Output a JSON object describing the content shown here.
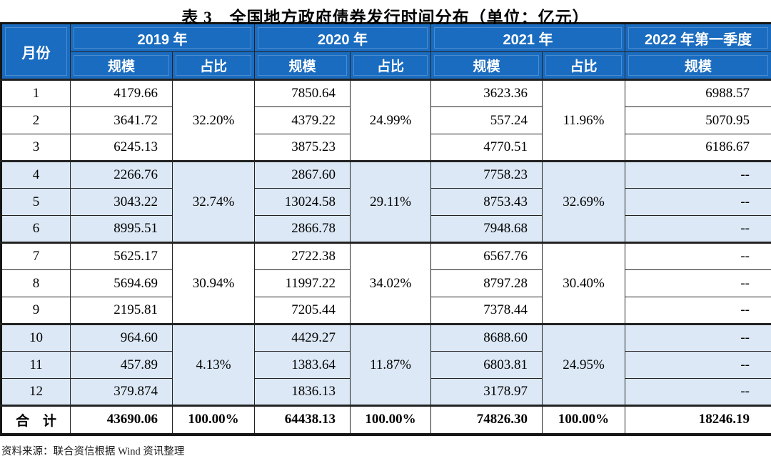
{
  "title": "表 3　全国地方政府债券发行时间分布（单位：亿元）",
  "header": {
    "month_label": "月份",
    "y2019": "2019 年",
    "y2020": "2020 年",
    "y2021": "2021 年",
    "q2022": "2022 年第一季度",
    "scale": "规模",
    "share": "占比"
  },
  "rows": [
    {
      "month": "1",
      "s2019": "4179.66",
      "s2020": "7850.64",
      "s2021": "3623.36",
      "s2022": "6988.57"
    },
    {
      "month": "2",
      "s2019": "3641.72",
      "s2020": "4379.22",
      "s2021": "557.24",
      "s2022": "5070.95"
    },
    {
      "month": "3",
      "s2019": "6245.13",
      "s2020": "3875.23",
      "s2021": "4770.51",
      "s2022": "6186.67"
    },
    {
      "month": "4",
      "s2019": "2266.76",
      "s2020": "2867.60",
      "s2021": "7758.23",
      "s2022": "--"
    },
    {
      "month": "5",
      "s2019": "3043.22",
      "s2020": "13024.58",
      "s2021": "8753.43",
      "s2022": "--"
    },
    {
      "month": "6",
      "s2019": "8995.51",
      "s2020": "2866.78",
      "s2021": "7948.68",
      "s2022": "--"
    },
    {
      "month": "7",
      "s2019": "5625.17",
      "s2020": "2722.38",
      "s2021": "6567.76",
      "s2022": "--"
    },
    {
      "month": "8",
      "s2019": "5694.69",
      "s2020": "11997.22",
      "s2021": "8797.28",
      "s2022": "--"
    },
    {
      "month": "9",
      "s2019": "2195.81",
      "s2020": "7205.44",
      "s2021": "7378.44",
      "s2022": "--"
    },
    {
      "month": "10",
      "s2019": "964.60",
      "s2020": "4429.27",
      "s2021": "8688.60",
      "s2022": "--"
    },
    {
      "month": "11",
      "s2019": "457.89",
      "s2020": "1383.64",
      "s2021": "6803.81",
      "s2022": "--"
    },
    {
      "month": "12",
      "s2019": "379.874",
      "s2020": "1836.13",
      "s2021": "3178.97",
      "s2022": "--"
    }
  ],
  "shares": {
    "q1": {
      "y2019": "32.20%",
      "y2020": "24.99%",
      "y2021": "11.96%"
    },
    "q2": {
      "y2019": "32.74%",
      "y2020": "29.11%",
      "y2021": "32.69%"
    },
    "q3": {
      "y2019": "30.94%",
      "y2020": "34.02%",
      "y2021": "30.40%"
    },
    "q4": {
      "y2019": "4.13%",
      "y2020": "11.87%",
      "y2021": "24.95%"
    }
  },
  "total": {
    "label": "合　计",
    "s2019": "43690.06",
    "p2019": "100.00%",
    "s2020": "64438.13",
    "p2020": "100.00%",
    "s2021": "74826.30",
    "p2021": "100.00%",
    "s2022": "18246.19"
  },
  "source": "资料来源：联合资信根据 Wind 资讯整理",
  "colors": {
    "header_bg": "#1A6CC0",
    "band_bg": "#DCE8F5",
    "border": "#222222"
  }
}
